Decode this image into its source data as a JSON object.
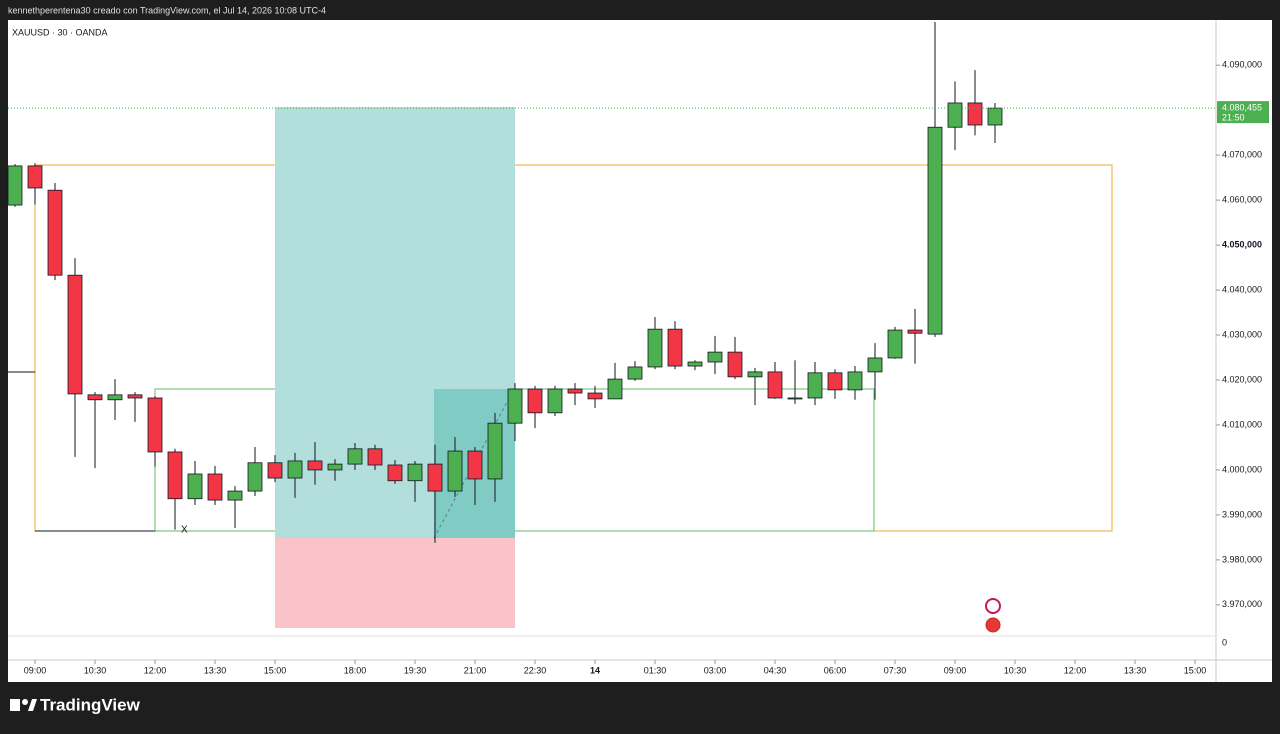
{
  "header": {
    "text": "kennethperentena30 creado con TradingView.com, el Jul 14, 2026 10:08 UTC-4"
  },
  "footer": {
    "brand": "TradingView"
  },
  "chart_data": {
    "type": "candlestick",
    "title": "XAUUSD · 30 · OANDA",
    "up_color": "#4caf50",
    "down_color": "#f23645",
    "x": [
      0,
      1,
      2,
      3,
      4,
      5,
      6,
      7,
      8,
      9,
      10,
      11,
      12,
      13,
      14,
      15,
      16,
      17,
      18,
      19,
      20,
      21,
      22,
      23,
      24,
      25,
      26,
      27,
      28,
      29,
      30,
      31,
      32,
      33,
      34,
      35,
      36,
      37,
      38,
      39,
      40,
      41,
      42,
      43,
      44,
      45,
      46,
      47,
      48,
      49
    ],
    "open": [
      4058.9,
      4067.6,
      4062.2,
      4043.3,
      4016.7,
      4015.6,
      4016.7,
      4016.0,
      4004.0,
      3993.6,
      3999.1,
      3993.3,
      3995.3,
      4001.6,
      3998.2,
      4002.0,
      4000.0,
      4001.3,
      4004.7,
      4001.1,
      3997.6,
      4001.3,
      3995.3,
      4004.2,
      3998.0,
      4010.4,
      4018.0,
      4012.7,
      4018.0,
      4017.1,
      4015.8,
      4020.2,
      4022.9,
      4031.3,
      4023.1,
      4024.0,
      4026.2,
      4020.7,
      4021.8,
      4016.0,
      4016.0,
      4021.6,
      4017.8,
      4021.8,
      4024.9,
      4031.1,
      4030.2,
      4076.2,
      4081.6,
      4076.7
    ],
    "high": [
      4068.0,
      4068.2,
      4063.8,
      4047.1,
      4017.3,
      4020.2,
      4017.3,
      4016.4,
      4004.7,
      4002.0,
      4000.9,
      3996.4,
      4005.1,
      4003.3,
      4003.8,
      4006.2,
      4002.4,
      4006.0,
      4005.6,
      4002.2,
      4002.0,
      4005.6,
      4007.3,
      4005.1,
      4012.7,
      4019.3,
      4018.7,
      4018.7,
      4019.3,
      4018.7,
      4023.8,
      4024.2,
      4034.0,
      4033.1,
      4024.4,
      4029.8,
      4029.6,
      4022.7,
      4024.0,
      4024.4,
      4024.0,
      4022.4,
      4023.1,
      4028.2,
      4031.8,
      4035.8,
      4099.6,
      4086.4,
      4088.9,
      4081.6
    ],
    "low": [
      4058.5,
      4059.0,
      4042.2,
      4002.9,
      4000.4,
      4011.1,
      4010.7,
      4000.7,
      3986.7,
      3992.2,
      3992.2,
      3987.1,
      3994.2,
      3997.3,
      3993.8,
      3996.7,
      3997.6,
      4000.0,
      4000.0,
      3996.9,
      3992.9,
      3983.8,
      3994.0,
      3992.2,
      3992.9,
      4006.4,
      4009.3,
      4012.0,
      4014.4,
      4013.8,
      4015.8,
      4019.8,
      4022.4,
      4022.4,
      4022.2,
      4021.3,
      4020.2,
      4014.4,
      4015.8,
      4014.7,
      4014.4,
      4015.8,
      4015.6,
      4015.6,
      4024.7,
      4023.6,
      4029.6,
      4071.1,
      4074.4,
      4072.7
    ],
    "close": [
      4067.6,
      4062.7,
      4043.3,
      4016.9,
      4015.6,
      4016.7,
      4016.0,
      4004.0,
      3993.6,
      3999.1,
      3993.3,
      3995.3,
      4001.6,
      3998.2,
      4002.0,
      4000.0,
      4001.3,
      4004.7,
      4001.1,
      3997.6,
      4001.3,
      3995.3,
      4004.2,
      3998.0,
      4010.4,
      4018.0,
      4012.7,
      4018.0,
      4017.1,
      4015.8,
      4020.2,
      4022.9,
      4031.3,
      4023.1,
      4024.0,
      4026.2,
      4020.7,
      4021.8,
      4016.0,
      4016.0,
      4021.6,
      4017.8,
      4021.8,
      4024.9,
      4031.1,
      4030.4,
      4076.2,
      4081.6,
      4076.7,
      4080.455
    ],
    "xlim": [
      -0.75,
      60.05
    ],
    "ylim": [
      3963.3,
      4099.6
    ],
    "xticks": [
      {
        "value": 1,
        "label": "09:00"
      },
      {
        "value": 4,
        "label": "10:30"
      },
      {
        "value": 7,
        "label": "12:00"
      },
      {
        "value": 10,
        "label": "13:30"
      },
      {
        "value": 13,
        "label": "15:00"
      },
      {
        "value": 17,
        "label": "18:00"
      },
      {
        "value": 20,
        "label": "19:30"
      },
      {
        "value": 23,
        "label": "21:00"
      },
      {
        "value": 26,
        "label": "22:30"
      },
      {
        "value": 29,
        "label": "14"
      },
      {
        "value": 32,
        "label": "01:30"
      },
      {
        "value": 35,
        "label": "03:00"
      },
      {
        "value": 38,
        "label": "04:30"
      },
      {
        "value": 41,
        "label": "06:00"
      },
      {
        "value": 44,
        "label": "07:30"
      },
      {
        "value": 47,
        "label": "09:00"
      },
      {
        "value": 50,
        "label": "10:30"
      },
      {
        "value": 53,
        "label": "12:00"
      },
      {
        "value": 56,
        "label": "13:30"
      },
      {
        "value": 59,
        "label": "15:00"
      }
    ],
    "yticks": [
      {
        "value": 4090,
        "label": "4.090,000"
      },
      {
        "value": 4070,
        "label": "4.070,000"
      },
      {
        "value": 4060,
        "label": "4.060,000"
      },
      {
        "value": 4050,
        "label": "4.050,000"
      },
      {
        "value": 4040,
        "label": "4.040,000"
      },
      {
        "value": 4030,
        "label": "4.030,000"
      },
      {
        "value": 4020,
        "label": "4.020,000"
      },
      {
        "value": 4010,
        "label": "4.010,000"
      },
      {
        "value": 4000,
        "label": "4.000,000"
      },
      {
        "value": 3990,
        "label": "3.990,000"
      },
      {
        "value": 3980,
        "label": "3.980,000"
      },
      {
        "value": 3970,
        "label": "3.970,000"
      }
    ],
    "last_price": {
      "value": 4080.455,
      "label": "4.080,455"
    },
    "countdown": "21:50",
    "lower_pane_tick": "0",
    "marker": "X"
  }
}
